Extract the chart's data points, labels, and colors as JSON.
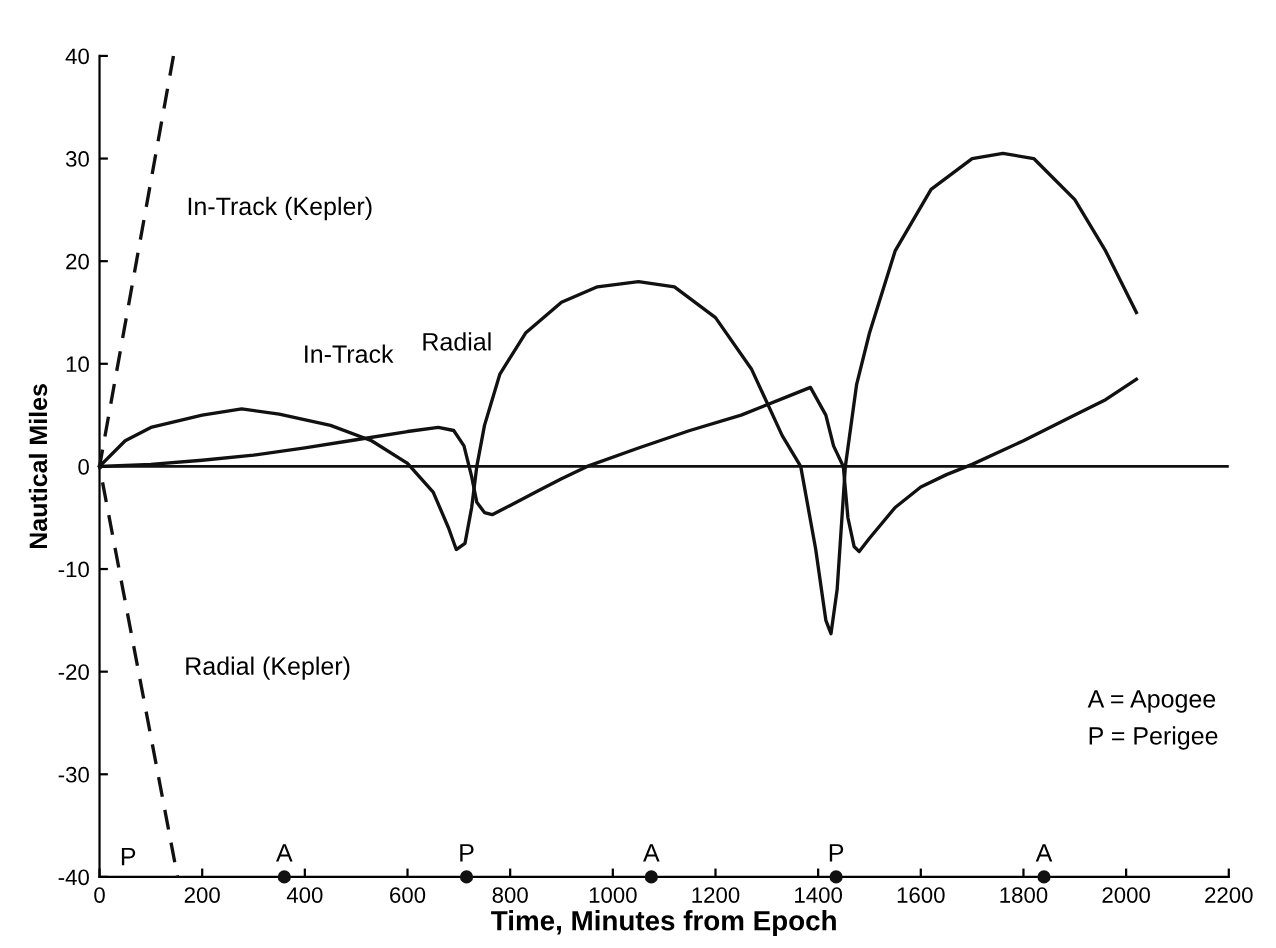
{
  "chart_data": {
    "type": "line",
    "xlabel": "Time, Minutes from Epoch",
    "ylabel": "Nautical Miles",
    "xlim": [
      0,
      2200
    ],
    "xticks": [
      0,
      200,
      400,
      600,
      800,
      1000,
      1200,
      1400,
      1600,
      1800,
      2000,
      2200
    ],
    "ylim": [
      -40,
      40
    ],
    "yticks": [
      -40,
      -30,
      -20,
      -10,
      0,
      10,
      20,
      30,
      40
    ],
    "grid": false,
    "legend": false,
    "marker": "none",
    "series": [
      {
        "color": "#111111",
        "line_style": "solid",
        "x": [
          0,
          50,
          100,
          200,
          277,
          350,
          450,
          530,
          600,
          650,
          680,
          695,
          712,
          725,
          735,
          750,
          780,
          830,
          900,
          970,
          1050,
          1120,
          1200,
          1270,
          1330,
          1366,
          1395,
          1415,
          1425,
          1437,
          1453,
          1475,
          1500,
          1550,
          1620,
          1700,
          1760,
          1820,
          1900,
          1960,
          2020
        ],
        "values": [
          0,
          2.5,
          3.8,
          5.0,
          5.6,
          5.1,
          4.0,
          2.5,
          0.3,
          -2.5,
          -6,
          -8.1,
          -7.5,
          -4,
          0,
          4,
          9,
          13,
          16,
          17.5,
          18,
          17.5,
          14.5,
          9.5,
          3,
          0,
          -8,
          -15,
          -16.3,
          -12,
          0,
          8,
          13,
          21,
          27,
          30,
          30.5,
          30,
          26,
          21,
          15
        ]
      },
      {
        "color": "#111111",
        "line_style": "solid",
        "x": [
          0,
          100,
          200,
          300,
          400,
          500,
          600,
          660,
          690,
          710,
          725,
          735,
          750,
          765,
          800,
          850,
          900,
          950,
          1050,
          1150,
          1250,
          1340,
          1385,
          1415,
          1430,
          1449,
          1458,
          1470,
          1480,
          1500,
          1550,
          1600,
          1650,
          1700,
          1800,
          1900,
          1960,
          2020
        ],
        "values": [
          0,
          0.2,
          0.6,
          1.1,
          1.8,
          2.6,
          3.4,
          3.8,
          3.5,
          2,
          -1,
          -3.5,
          -4.5,
          -4.7,
          -3.8,
          -2.5,
          -1.2,
          0,
          1.8,
          3.5,
          5,
          6.8,
          7.7,
          5,
          2,
          0,
          -5,
          -7.8,
          -8.3,
          -7,
          -4,
          -2,
          -0.8,
          0.2,
          2.5,
          5,
          6.5,
          8.5
        ]
      },
      {
        "color": "#111111",
        "line_style": "dashed",
        "x": [
          144,
          0,
          152
        ],
        "values": [
          40,
          0,
          -40
        ]
      },
      {
        "type": "scatter",
        "marker": "circle",
        "color": "#111111",
        "x": [
          360,
          715,
          1075,
          1435,
          1840
        ],
        "values": [
          -40,
          -40,
          -40,
          -40,
          -40
        ]
      }
    ],
    "ref_lines": [
      {
        "axis": "y",
        "value": 0,
        "color": "#111111"
      }
    ],
    "annotations": [
      "In-Track (Kepler)",
      "Radial (Kepler)",
      "In-Track",
      "Radial",
      "P",
      {
        "text": "A",
        "x": 360,
        "y": -39
      },
      {
        "text": "P",
        "x": 715,
        "y": -39
      },
      {
        "text": "A",
        "x": 1075,
        "y": -39
      },
      {
        "text": "P",
        "x": 1435,
        "y": -39
      },
      {
        "text": "A",
        "x": 1840,
        "y": -39
      },
      "A = Apogee",
      "P = Perigee"
    ]
  }
}
